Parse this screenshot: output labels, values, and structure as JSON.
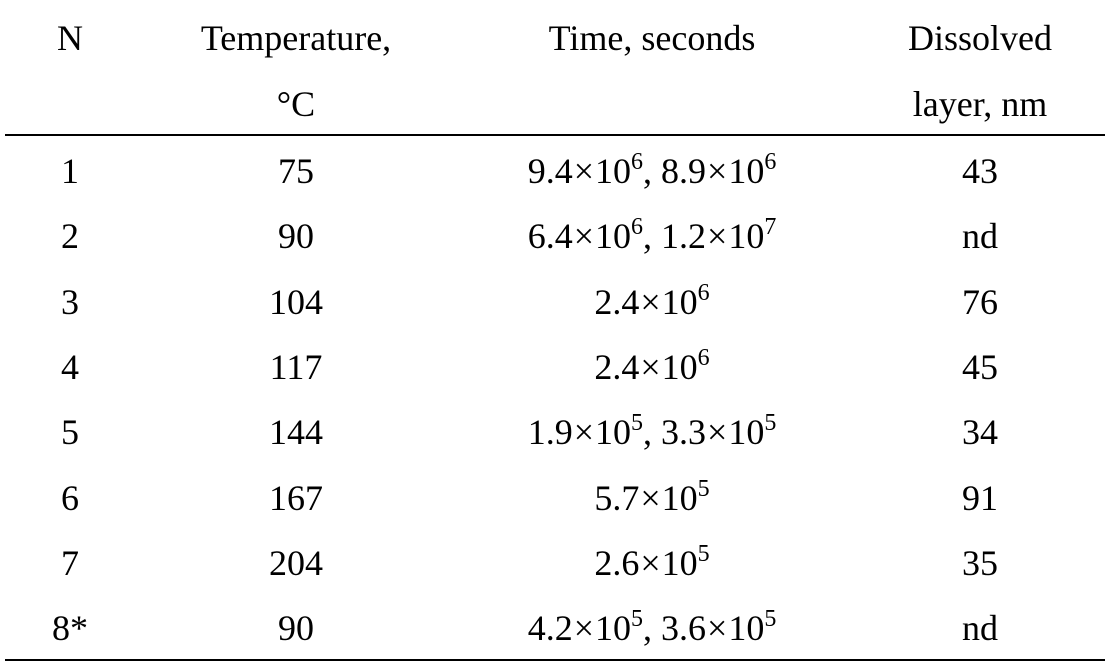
{
  "table": {
    "headers": {
      "n": "N",
      "temperature_line1": "Temperature,",
      "temperature_line2": "°C",
      "time": "Time, seconds",
      "dissolved_line1": "Dissolved",
      "dissolved_line2": "layer, nm"
    },
    "times_symbol": "×",
    "separator": ", ",
    "rows": [
      {
        "n": "1",
        "temperature": "75",
        "times": [
          {
            "m": "9.4",
            "base": "10",
            "exp": "6"
          },
          {
            "m": "8.9",
            "base": "10",
            "exp": "6"
          }
        ],
        "dissolved": "43"
      },
      {
        "n": "2",
        "temperature": "90",
        "times": [
          {
            "m": "6.4",
            "base": "10",
            "exp": "6"
          },
          {
            "m": "1.2",
            "base": "10",
            "exp": "7"
          }
        ],
        "dissolved": "nd"
      },
      {
        "n": "3",
        "temperature": "104",
        "times": [
          {
            "m": "2.4",
            "base": "10",
            "exp": "6"
          }
        ],
        "dissolved": "76"
      },
      {
        "n": "4",
        "temperature": "117",
        "times": [
          {
            "m": "2.4",
            "base": "10",
            "exp": "6"
          }
        ],
        "dissolved": "45"
      },
      {
        "n": "5",
        "temperature": "144",
        "times": [
          {
            "m": "1.9",
            "base": "10",
            "exp": "5"
          },
          {
            "m": "3.3",
            "base": "10",
            "exp": "5"
          }
        ],
        "dissolved": "34"
      },
      {
        "n": "6",
        "temperature": "167",
        "times": [
          {
            "m": "5.7",
            "base": "10",
            "exp": "5"
          }
        ],
        "dissolved": "91"
      },
      {
        "n": "7",
        "temperature": "204",
        "times": [
          {
            "m": "2.6",
            "base": "10",
            "exp": "5"
          }
        ],
        "dissolved": "35"
      },
      {
        "n": "8*",
        "temperature": "90",
        "times": [
          {
            "m": "4.2",
            "base": "10",
            "exp": "5"
          },
          {
            "m": "3.6",
            "base": "10",
            "exp": "5"
          }
        ],
        "dissolved": "nd"
      }
    ]
  }
}
